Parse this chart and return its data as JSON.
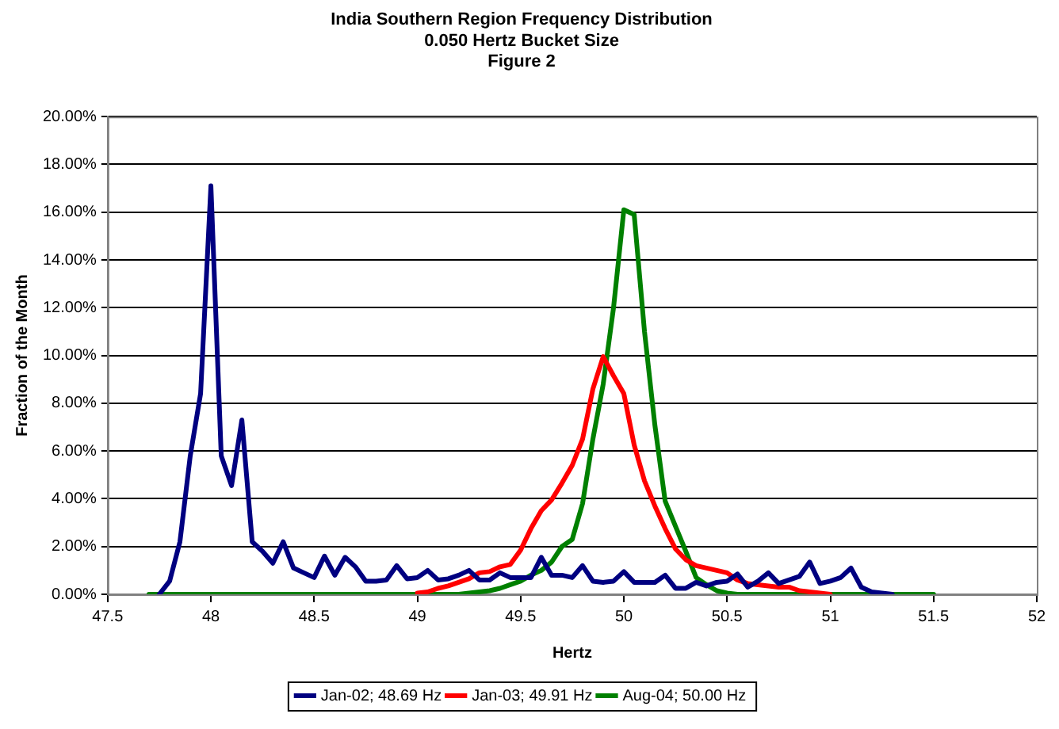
{
  "chart_data": {
    "type": "line",
    "title": "India Southern Region Frequency Distribution",
    "subtitle": "0.050 Hertz Bucket Size\nFigure 2",
    "xlabel": "Hertz",
    "ylabel": "Fraction of the Month",
    "xlim": [
      47.5,
      52
    ],
    "xticks": [
      47.5,
      48,
      48.5,
      49,
      49.5,
      50,
      50.5,
      51,
      51.5,
      52
    ],
    "ylim": [
      0,
      20
    ],
    "yticks": [
      {
        "value": 0,
        "label": "0.00%"
      },
      {
        "value": 2,
        "label": "2.00%"
      },
      {
        "value": 4,
        "label": "4.00%"
      },
      {
        "value": 6,
        "label": "6.00%"
      },
      {
        "value": 8,
        "label": "8.00%"
      },
      {
        "value": 10,
        "label": "10.00%"
      },
      {
        "value": 12,
        "label": "12.00%"
      },
      {
        "value": 14,
        "label": "14.00%"
      },
      {
        "value": 16,
        "label": "16.00%"
      },
      {
        "value": 18,
        "label": "18.00%"
      },
      {
        "value": 20,
        "label": "20.00%"
      }
    ],
    "grid": "y",
    "legend": "bottom",
    "marker": "none",
    "line_style": "solid",
    "series": [
      {
        "name": "Jan-02; 48.69 Hz",
        "color": "#000080",
        "x": [
          47.75,
          47.8,
          47.85,
          47.9,
          47.95,
          48.0,
          48.05,
          48.1,
          48.15,
          48.2,
          48.25,
          48.3,
          48.35,
          48.4,
          48.45,
          48.5,
          48.55,
          48.6,
          48.65,
          48.7,
          48.75,
          48.8,
          48.85,
          48.9,
          48.95,
          49.0,
          49.05,
          49.1,
          49.15,
          49.2,
          49.25,
          49.3,
          49.35,
          49.4,
          49.45,
          49.5,
          49.55,
          49.6,
          49.65,
          49.7,
          49.75,
          49.8,
          49.85,
          49.9,
          49.95,
          50.0,
          50.05,
          50.1,
          50.15,
          50.2,
          50.25,
          50.3,
          50.35,
          50.4,
          50.45,
          50.5,
          50.55,
          50.6,
          50.65,
          50.7,
          50.75,
          50.8,
          50.85,
          50.9,
          50.95,
          51.0,
          51.05,
          51.1,
          51.15,
          51.2,
          51.25,
          51.3
        ],
        "values": [
          0,
          0.55,
          2.2,
          5.8,
          8.4,
          17.1,
          5.8,
          4.55,
          7.3,
          2.2,
          1.8,
          1.3,
          2.2,
          1.1,
          0.9,
          0.7,
          1.6,
          0.8,
          1.55,
          1.15,
          0.55,
          0.55,
          0.6,
          1.2,
          0.65,
          0.7,
          1.0,
          0.6,
          0.65,
          0.8,
          1.0,
          0.6,
          0.6,
          0.9,
          0.7,
          0.7,
          0.7,
          1.55,
          0.8,
          0.8,
          0.7,
          1.2,
          0.55,
          0.5,
          0.55,
          0.95,
          0.5,
          0.5,
          0.5,
          0.8,
          0.25,
          0.25,
          0.5,
          0.35,
          0.5,
          0.55,
          0.85,
          0.3,
          0.55,
          0.9,
          0.45,
          0.6,
          0.75,
          1.35,
          0.45,
          0.55,
          0.7,
          1.1,
          0.3,
          0.1,
          0.05,
          0
        ]
      },
      {
        "name": "Jan-03; 49.91 Hz",
        "color": "#ff0000",
        "x": [
          49.0,
          49.05,
          49.1,
          49.15,
          49.2,
          49.25,
          49.3,
          49.35,
          49.4,
          49.45,
          49.5,
          49.55,
          49.6,
          49.65,
          49.7,
          49.75,
          49.8,
          49.85,
          49.9,
          49.95,
          50.0,
          50.05,
          50.1,
          50.15,
          50.2,
          50.25,
          50.3,
          50.35,
          50.4,
          50.45,
          50.5,
          50.55,
          50.6,
          50.65,
          50.7,
          50.75,
          50.8,
          50.85,
          50.9,
          50.95,
          51.0
        ],
        "values": [
          0.05,
          0.1,
          0.25,
          0.35,
          0.5,
          0.65,
          0.9,
          0.95,
          1.15,
          1.25,
          1.85,
          2.75,
          3.5,
          3.95,
          4.65,
          5.4,
          6.5,
          8.6,
          9.95,
          9.15,
          8.4,
          6.25,
          4.75,
          3.7,
          2.75,
          1.9,
          1.45,
          1.2,
          1.1,
          1.0,
          0.9,
          0.6,
          0.45,
          0.4,
          0.35,
          0.3,
          0.3,
          0.15,
          0.1,
          0.05,
          0
        ]
      },
      {
        "name": "Aug-04; 50.00 Hz",
        "color": "#008000",
        "x": [
          47.7,
          47.75,
          47.8,
          47.85,
          47.9,
          47.95,
          48.0,
          48.05,
          48.1,
          48.15,
          48.2,
          48.25,
          48.3,
          48.35,
          48.4,
          48.45,
          48.5,
          48.55,
          48.6,
          48.65,
          48.7,
          48.75,
          48.8,
          48.85,
          48.9,
          48.95,
          49.0,
          49.05,
          49.1,
          49.15,
          49.2,
          49.25,
          49.3,
          49.35,
          49.4,
          49.45,
          49.5,
          49.55,
          49.6,
          49.65,
          49.7,
          49.75,
          49.8,
          49.85,
          49.9,
          49.95,
          50.0,
          50.05,
          50.1,
          50.15,
          50.2,
          50.25,
          50.3,
          50.35,
          50.4,
          50.45,
          50.5,
          50.55,
          50.6,
          50.65,
          50.7,
          50.75,
          50.8,
          50.85,
          50.9,
          50.95,
          51.0,
          51.05,
          51.1,
          51.15,
          51.2,
          51.25,
          51.3,
          51.35,
          51.4,
          51.45,
          51.5
        ],
        "values": [
          0,
          0,
          0,
          0,
          0,
          0,
          0,
          0,
          0,
          0,
          0,
          0,
          0,
          0,
          0,
          0,
          0,
          0,
          0,
          0,
          0,
          0,
          0,
          0,
          0,
          0,
          0,
          0,
          0,
          0,
          0,
          0.05,
          0.1,
          0.15,
          0.25,
          0.4,
          0.55,
          0.8,
          1.0,
          1.35,
          2.0,
          2.3,
          3.8,
          6.5,
          8.8,
          12.0,
          16.1,
          15.9,
          11.0,
          7.1,
          3.9,
          2.85,
          1.8,
          0.7,
          0.4,
          0.15,
          0.05,
          0,
          0,
          0,
          0,
          0,
          0,
          0,
          0,
          0,
          0,
          0,
          0,
          0,
          0,
          0,
          0,
          0,
          0,
          0,
          0
        ]
      }
    ]
  }
}
